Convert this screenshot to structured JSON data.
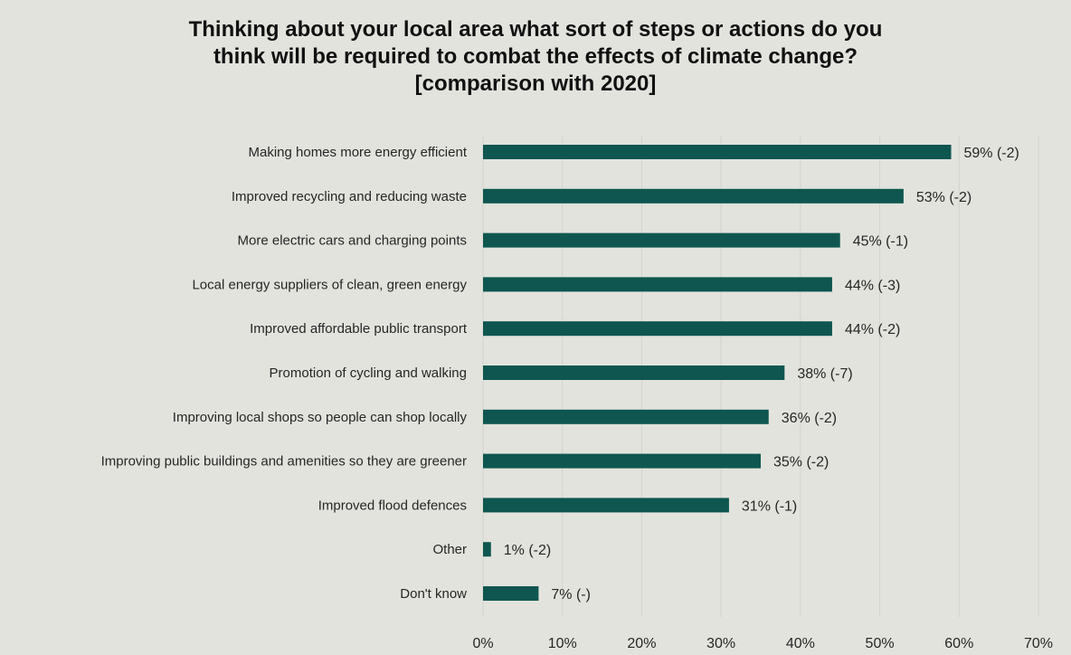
{
  "chart_data": {
    "type": "bar",
    "orientation": "horizontal",
    "title_lines": [
      "Thinking about your local area what sort of steps or actions do you",
      "think will be required to combat the effects of climate change?",
      "[comparison with 2020]"
    ],
    "categories": [
      "Making homes more energy efficient",
      "Improved recycling and reducing waste",
      "More electric cars and charging points",
      "Local energy suppliers of clean, green energy",
      "Improved affordable public transport",
      "Promotion of cycling and walking",
      "Improving local shops so people can shop locally",
      "Improving public buildings and amenities so they are greener",
      "Improved flood defences",
      "Other",
      "Don't know"
    ],
    "values": [
      59,
      53,
      45,
      44,
      44,
      38,
      36,
      35,
      31,
      1,
      7
    ],
    "data_labels": [
      "59% (-2)",
      "53% (-2)",
      "45% (-1)",
      "44% (-3)",
      "44% (-2)",
      "38% (-7)",
      "36% (-2)",
      "35% (-2)",
      "31% (-1)",
      "1% (-2)",
      "7% (-)"
    ],
    "x_ticks": [
      0,
      10,
      20,
      30,
      40,
      50,
      60,
      70
    ],
    "x_tick_labels": [
      "0%",
      "10%",
      "20%",
      "30%",
      "40%",
      "50%",
      "60%",
      "70%"
    ],
    "xlim": [
      0,
      70
    ],
    "xlabel": "",
    "ylabel": "",
    "grid": true,
    "legend": false,
    "bar_color": "#0f5650",
    "background_color": "#e2e3dd"
  }
}
